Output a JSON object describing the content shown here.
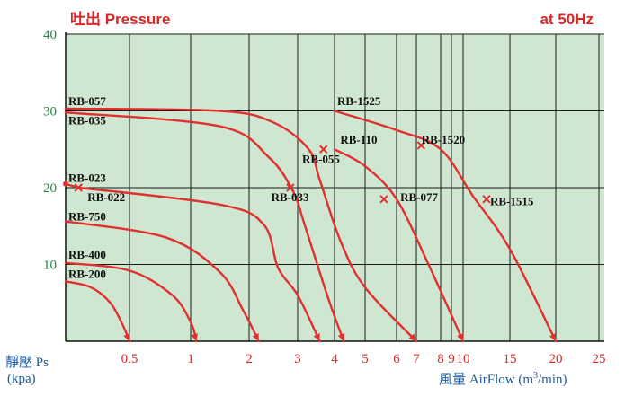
{
  "chart_data": {
    "type": "line",
    "title_left": "吐出 Pressure",
    "title_right": "at 50Hz",
    "ylabel": "靜壓 Ps",
    "ylabel_unit": "(kpa)",
    "xlabel": "風量 AirFlow (m",
    "xlabel_sup": "3",
    "xlabel_tail": "/min)",
    "ylim": [
      0,
      40
    ],
    "y_ticks": [
      "10",
      "20",
      "30",
      "40"
    ],
    "x_scale": "nonlinear",
    "x_ticks": [
      "0.5",
      "1",
      "2",
      "3",
      "4",
      "5",
      "6",
      "7",
      "8",
      "9",
      "10",
      "15",
      "20",
      "25"
    ],
    "grid": true,
    "colors": {
      "background": "#cfe7d0",
      "curve": "#e03030",
      "grid": "#1a1a1a"
    },
    "series": [
      {
        "name": "RB-200",
        "x": [
          0,
          0.2,
          0.35,
          0.45,
          0.5
        ],
        "y": [
          7.8,
          7.0,
          5.0,
          2.0,
          0
        ]
      },
      {
        "name": "RB-400",
        "x": [
          0,
          0.5,
          0.85,
          1.0,
          1.1
        ],
        "y": [
          10.2,
          9.2,
          6.0,
          2.5,
          0
        ]
      },
      {
        "name": "RB-750",
        "x": [
          0,
          0.8,
          1.5,
          1.9,
          2.2
        ],
        "y": [
          15.6,
          13.5,
          9.0,
          4.0,
          0
        ]
      },
      {
        "name": "RB-023",
        "x": [
          0,
          0.1
        ],
        "y": [
          20.5,
          20.0
        ]
      },
      {
        "name": "RB-022",
        "x": [
          0.1,
          1.5,
          2.3,
          2.6,
          3.0,
          3.6
        ],
        "y": [
          20.0,
          17.8,
          15.2,
          9.5,
          6.0,
          0
        ]
      },
      {
        "name": "RB-035",
        "x": [
          0,
          1.5,
          2.4,
          2.9,
          3.2,
          3.8,
          4.3
        ],
        "y": [
          29.8,
          28.0,
          24.0,
          19.6,
          15.0,
          6.0,
          0
        ]
      },
      {
        "name": "RB-057",
        "x": [
          0,
          1.5,
          2.5,
          3.3,
          3.6,
          4.2,
          5.0,
          7.0
        ],
        "y": [
          30.3,
          30.0,
          28.5,
          25.0,
          21.0,
          13.0,
          7.0,
          0
        ]
      },
      {
        "name": "RB-110",
        "x": [
          4.0,
          5.0,
          6.0,
          7.5,
          10.0
        ],
        "y": [
          25.0,
          22.8,
          18.5,
          10.0,
          0
        ]
      },
      {
        "name": "RB-1525",
        "x": [
          4.0,
          6.0,
          8.0,
          11.0,
          15.0,
          20.0
        ],
        "y": [
          30.0,
          27.5,
          25.0,
          19.0,
          12.0,
          0
        ]
      }
    ],
    "markers": [
      {
        "label": "RB-057",
        "x": 3.7,
        "y": 25.0
      },
      {
        "label": "RB-035",
        "x": 2.85,
        "y": 20.0
      },
      {
        "label": "RB-022",
        "x": 0.1,
        "y": 20.0
      },
      {
        "label": "RB-110",
        "x": 5.6,
        "y": 18.5
      },
      {
        "label": "RB-1525",
        "x": 7.2,
        "y": 25.5
      },
      {
        "label": "RB-1525",
        "x": 12.5,
        "y": 18.5
      }
    ],
    "labels": [
      {
        "text": "RB-057",
        "x": 0,
        "y": 31.2
      },
      {
        "text": "RB-035",
        "x": 0,
        "y": 28.7
      },
      {
        "text": "RB-023",
        "x": 0,
        "y": 21.2
      },
      {
        "text": "RB-022",
        "x": 0.15,
        "y": 18.7
      },
      {
        "text": "RB-750",
        "x": 0,
        "y": 16.2
      },
      {
        "text": "RB-400",
        "x": 0,
        "y": 11.2
      },
      {
        "text": "RB-200",
        "x": 0,
        "y": 8.7
      },
      {
        "text": "RB-055",
        "x": 3.05,
        "y": 23.7
      },
      {
        "text": "RB-033",
        "x": 2.4,
        "y": 18.7
      },
      {
        "text": "RB-1525",
        "x": 4.0,
        "y": 31.2
      },
      {
        "text": "RB-110",
        "x": 4.1,
        "y": 26.2
      },
      {
        "text": "RB-1520",
        "x": 7.1,
        "y": 26.2
      },
      {
        "text": "RB-077",
        "x": 6.05,
        "y": 18.7
      },
      {
        "text": "RB-1515",
        "x": 12.6,
        "y": 18.2
      }
    ]
  }
}
